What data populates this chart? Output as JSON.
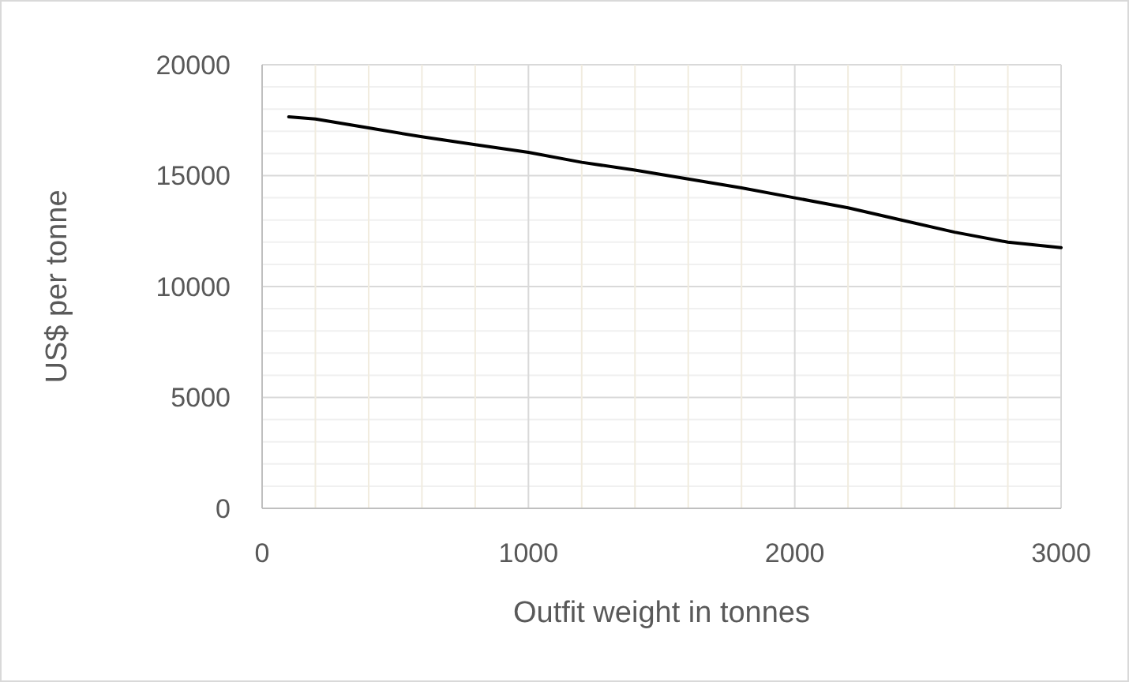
{
  "chart_data": {
    "type": "line",
    "xlabel": "Outfit weight in tonnes",
    "ylabel": "US$ per tonne",
    "xlim": [
      0,
      3000
    ],
    "ylim": [
      0,
      20000
    ],
    "xticks": [
      0,
      {
        "value": 200,
        "label": null
      },
      {
        "value": 400,
        "label": null
      },
      {
        "value": 600,
        "label": null
      },
      {
        "value": 800,
        "label": null
      },
      1000,
      {
        "value": 1200,
        "label": null
      },
      {
        "value": 1400,
        "label": null
      },
      {
        "value": 1600,
        "label": null
      },
      {
        "value": 1800,
        "label": null
      },
      2000,
      {
        "value": 2200,
        "label": null
      },
      {
        "value": 2400,
        "label": null
      },
      {
        "value": 2600,
        "label": null
      },
      {
        "value": 2800,
        "label": null
      },
      3000
    ],
    "yticks": [
      0,
      {
        "value": 1000,
        "label": null
      },
      {
        "value": 2000,
        "label": null
      },
      {
        "value": 3000,
        "label": null
      },
      {
        "value": 4000,
        "label": null
      },
      5000,
      {
        "value": 6000,
        "label": null
      },
      {
        "value": 7000,
        "label": null
      },
      {
        "value": 8000,
        "label": null
      },
      {
        "value": 9000,
        "label": null
      },
      10000,
      {
        "value": 11000,
        "label": null
      },
      {
        "value": 12000,
        "label": null
      },
      {
        "value": 13000,
        "label": null
      },
      {
        "value": 14000,
        "label": null
      },
      15000,
      {
        "value": 16000,
        "label": null
      },
      {
        "value": 17000,
        "label": null
      },
      {
        "value": 18000,
        "label": null
      },
      {
        "value": 19000,
        "label": null
      },
      20000
    ],
    "grid": true,
    "marker": "none",
    "line_style": "solid",
    "series": [
      {
        "color": "#000000",
        "x": [
          100,
          200,
          400,
          600,
          800,
          1000,
          1200,
          1400,
          1600,
          1800,
          2000,
          2200,
          2400,
          2600,
          2800,
          3000
        ],
        "values": [
          17650,
          17550,
          17150,
          16750,
          16400,
          16050,
          15600,
          15250,
          14850,
          14450,
          14000,
          13550,
          13000,
          12450,
          12000,
          11750
        ]
      }
    ]
  }
}
